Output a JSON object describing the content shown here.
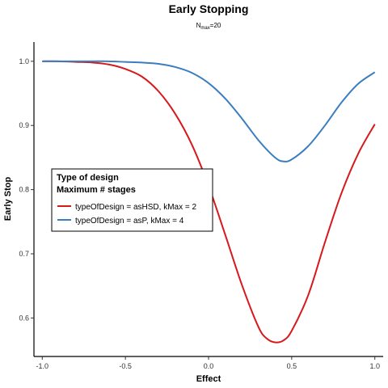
{
  "chart_data": {
    "type": "line",
    "title": "Early Stopping",
    "subtitle": {
      "base": "N",
      "sub": "max",
      "rest": "=20"
    },
    "xlabel": "Effect",
    "ylabel": "Early Stop",
    "xlim": [
      -1.05,
      1.05
    ],
    "ylim": [
      0.54,
      1.03
    ],
    "xticks": [
      -1.0,
      -0.5,
      0.0,
      0.5,
      1.0
    ],
    "xtick_labels": [
      "-1.0",
      "-0.5",
      "0.0",
      "0.5",
      "1.0"
    ],
    "yticks": [
      0.6,
      0.7,
      0.8,
      0.9,
      1.0
    ],
    "ytick_labels": [
      "0.6",
      "0.7",
      "0.8",
      "0.9",
      "1.0"
    ],
    "grid": false,
    "legend": {
      "placement": "center-left",
      "title_lines": [
        "Type of design",
        "Maximum # stages"
      ]
    },
    "series": [
      {
        "name": "typeOfDesign = asHSD, kMax = 2",
        "color": "#d7191c",
        "x": [
          -1.0,
          -0.9,
          -0.8,
          -0.7,
          -0.6,
          -0.5,
          -0.4,
          -0.3,
          -0.2,
          -0.1,
          0.0,
          0.1,
          0.2,
          0.3,
          0.35,
          0.4,
          0.45,
          0.5,
          0.6,
          0.7,
          0.8,
          0.9,
          1.0
        ],
        "y": [
          1.0,
          1.0,
          0.999,
          0.998,
          0.995,
          0.988,
          0.976,
          0.953,
          0.918,
          0.87,
          0.806,
          0.73,
          0.652,
          0.586,
          0.568,
          0.562,
          0.565,
          0.58,
          0.636,
          0.718,
          0.795,
          0.856,
          0.902
        ]
      },
      {
        "name": "typeOfDesign = asP, kMax = 4",
        "color": "#3a7ebf",
        "x": [
          -1.0,
          -0.9,
          -0.8,
          -0.7,
          -0.6,
          -0.5,
          -0.4,
          -0.3,
          -0.2,
          -0.1,
          0.0,
          0.1,
          0.2,
          0.3,
          0.4,
          0.45,
          0.5,
          0.6,
          0.7,
          0.8,
          0.9,
          1.0
        ],
        "y": [
          1.0,
          1.0,
          1.0,
          1.0,
          1.0,
          0.999,
          0.998,
          0.996,
          0.991,
          0.982,
          0.966,
          0.942,
          0.911,
          0.877,
          0.85,
          0.844,
          0.847,
          0.868,
          0.9,
          0.936,
          0.965,
          0.983
        ]
      }
    ]
  }
}
